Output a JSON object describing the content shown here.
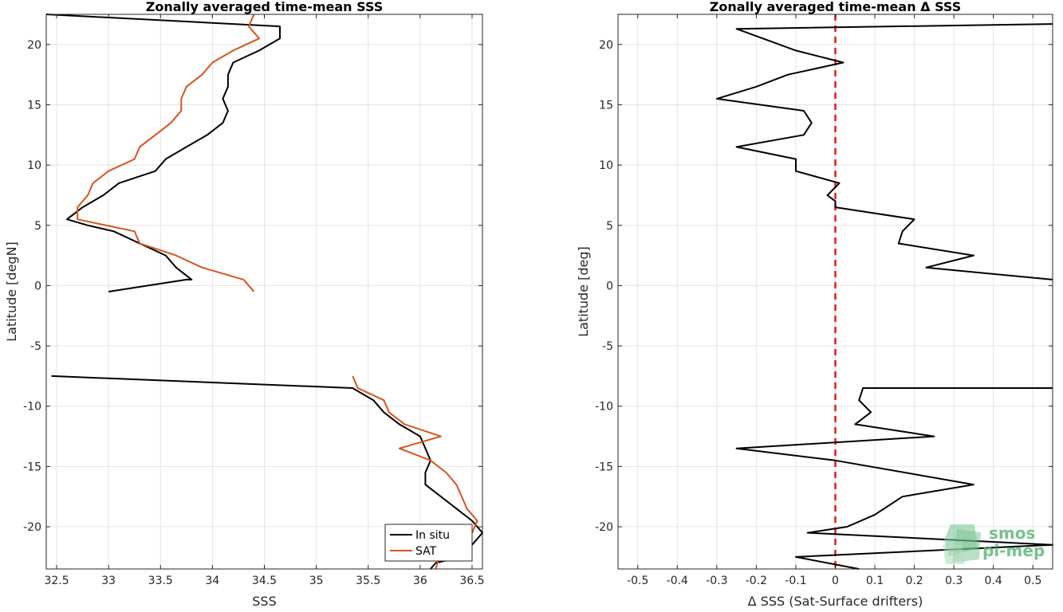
{
  "chart_data": [
    {
      "type": "line",
      "title": "Zonally averaged time-mean SSS",
      "xlabel": "SSS",
      "ylabel": "Latitude [degN]",
      "xlim": [
        32.4,
        36.6
      ],
      "ylim": [
        -23.5,
        22.5
      ],
      "xticks": [
        32.5,
        33,
        33.5,
        34,
        34.5,
        35,
        35.5,
        36,
        36.5
      ],
      "yticks": [
        -20,
        -15,
        -10,
        -5,
        0,
        5,
        10,
        15,
        20
      ],
      "grid": true,
      "legend": {
        "placement": "bottom-right",
        "entries": [
          "In situ",
          "SAT"
        ]
      },
      "series": [
        {
          "name": "In situ",
          "color": "#000000",
          "segments": [
            [
              [
                32.4,
                22.5
              ],
              [
                34.65,
                21.5
              ],
              [
                34.65,
                20.5
              ],
              [
                34.45,
                19.5
              ],
              [
                34.2,
                18.5
              ],
              [
                34.15,
                17.5
              ],
              [
                34.15,
                16.5
              ],
              [
                34.1,
                15.5
              ],
              [
                34.15,
                14.5
              ],
              [
                34.1,
                13.5
              ],
              [
                33.95,
                12.5
              ],
              [
                33.75,
                11.5
              ],
              [
                33.55,
                10.5
              ],
              [
                33.45,
                9.5
              ],
              [
                33.1,
                8.5
              ],
              [
                32.95,
                7.5
              ],
              [
                32.75,
                6.5
              ],
              [
                32.6,
                5.5
              ],
              [
                32.8,
                5.0
              ],
              [
                33.05,
                4.5
              ],
              [
                33.3,
                3.5
              ],
              [
                33.55,
                2.5
              ],
              [
                33.65,
                1.5
              ],
              [
                33.8,
                0.5
              ],
              [
                33.75,
                0.5
              ],
              [
                33.0,
                -0.5
              ]
            ],
            [
              [
                32.45,
                -7.5
              ],
              [
                35.35,
                -8.5
              ],
              [
                35.55,
                -9.5
              ],
              [
                35.65,
                -10.5
              ],
              [
                35.8,
                -11.5
              ],
              [
                36.0,
                -12.5
              ],
              [
                36.05,
                -13.5
              ],
              [
                36.1,
                -14.5
              ],
              [
                36.05,
                -15.5
              ],
              [
                36.05,
                -16.5
              ],
              [
                36.2,
                -17.5
              ],
              [
                36.35,
                -18.5
              ],
              [
                36.5,
                -19.5
              ],
              [
                36.6,
                -20.5
              ],
              [
                36.5,
                -21.5
              ],
              [
                36.4,
                -22.5
              ],
              [
                36.15,
                -23.0
              ],
              [
                36.1,
                -23.5
              ]
            ]
          ]
        },
        {
          "name": "SAT",
          "color": "#d95319",
          "segments": [
            [
              [
                34.4,
                22.5
              ],
              [
                34.35,
                21.5
              ],
              [
                34.45,
                20.5
              ],
              [
                34.2,
                19.5
              ],
              [
                34.0,
                18.5
              ],
              [
                33.9,
                17.5
              ],
              [
                33.75,
                16.5
              ],
              [
                33.7,
                15.5
              ],
              [
                33.7,
                14.5
              ],
              [
                33.6,
                13.5
              ],
              [
                33.45,
                12.5
              ],
              [
                33.3,
                11.5
              ],
              [
                33.25,
                10.5
              ],
              [
                33.0,
                9.5
              ],
              [
                32.85,
                8.5
              ],
              [
                32.8,
                7.5
              ],
              [
                32.7,
                6.5
              ],
              [
                32.7,
                5.5
              ],
              [
                33.25,
                4.5
              ],
              [
                33.3,
                3.5
              ],
              [
                33.65,
                2.5
              ],
              [
                33.9,
                1.5
              ],
              [
                34.3,
                0.5
              ],
              [
                34.4,
                -0.5
              ]
            ],
            [
              [
                35.35,
                -7.5
              ],
              [
                35.4,
                -8.5
              ],
              [
                35.65,
                -9.5
              ],
              [
                35.7,
                -10.5
              ],
              [
                35.85,
                -11.5
              ],
              [
                36.2,
                -12.5
              ],
              [
                35.8,
                -13.5
              ],
              [
                36.1,
                -14.5
              ],
              [
                36.25,
                -15.5
              ],
              [
                36.35,
                -16.5
              ],
              [
                36.4,
                -17.5
              ],
              [
                36.45,
                -18.5
              ],
              [
                36.55,
                -19.5
              ],
              [
                36.5,
                -20.5
              ],
              [
                36.2,
                -22.0
              ],
              [
                36.15,
                -23.5
              ]
            ]
          ]
        }
      ]
    },
    {
      "type": "line",
      "title": "Zonally averaged time-mean Δ SSS",
      "xlabel": "Δ SSS (Sat-Surface drifters)",
      "ylabel": "Latitude [deg]",
      "xlim": [
        -0.55,
        0.55
      ],
      "ylim": [
        -23.5,
        22.5
      ],
      "xticks": [
        -0.5,
        -0.4,
        -0.3,
        -0.2,
        -0.1,
        0,
        0.1,
        0.2,
        0.3,
        0.4,
        0.5
      ],
      "yticks": [
        -20,
        -15,
        -10,
        -5,
        0,
        5,
        10,
        15,
        20
      ],
      "grid": true,
      "reference_line": {
        "x": 0,
        "color": "#e41a1c",
        "style": "dashed"
      },
      "series": [
        {
          "name": "",
          "color": "#000000",
          "segments": [
            [
              [
                0.55,
                21.7
              ],
              [
                -0.25,
                21.3
              ],
              [
                -0.1,
                19.5
              ],
              [
                0.02,
                18.5
              ],
              [
                -0.12,
                17.5
              ],
              [
                -0.2,
                16.5
              ],
              [
                -0.3,
                15.5
              ],
              [
                -0.08,
                14.5
              ],
              [
                -0.06,
                13.5
              ],
              [
                -0.08,
                12.5
              ],
              [
                -0.25,
                11.5
              ],
              [
                -0.1,
                10.5
              ],
              [
                -0.1,
                9.5
              ],
              [
                0.01,
                8.5
              ],
              [
                -0.02,
                7.5
              ],
              [
                0.0,
                7.0
              ],
              [
                0.0,
                6.5
              ],
              [
                0.2,
                5.5
              ],
              [
                0.17,
                4.5
              ],
              [
                0.16,
                3.5
              ],
              [
                0.35,
                2.5
              ],
              [
                0.23,
                1.5
              ],
              [
                0.55,
                0.5
              ]
            ],
            [
              [
                0.55,
                -8.5
              ],
              [
                0.07,
                -8.5
              ],
              [
                0.06,
                -9.5
              ],
              [
                0.09,
                -10.5
              ],
              [
                0.05,
                -11.5
              ],
              [
                0.25,
                -12.5
              ],
              [
                -0.25,
                -13.5
              ],
              [
                0.0,
                -14.5
              ],
              [
                0.35,
                -16.5
              ],
              [
                0.17,
                -17.5
              ],
              [
                0.1,
                -19.0
              ],
              [
                0.03,
                -20.0
              ],
              [
                -0.07,
                -20.5
              ],
              [
                0.55,
                -21.5
              ],
              [
                -0.1,
                -22.5
              ],
              [
                0.06,
                -23.5
              ]
            ]
          ]
        }
      ]
    }
  ],
  "watermark": {
    "line1": "smos",
    "line2": "pi-mep",
    "color": "#5fb87a"
  }
}
